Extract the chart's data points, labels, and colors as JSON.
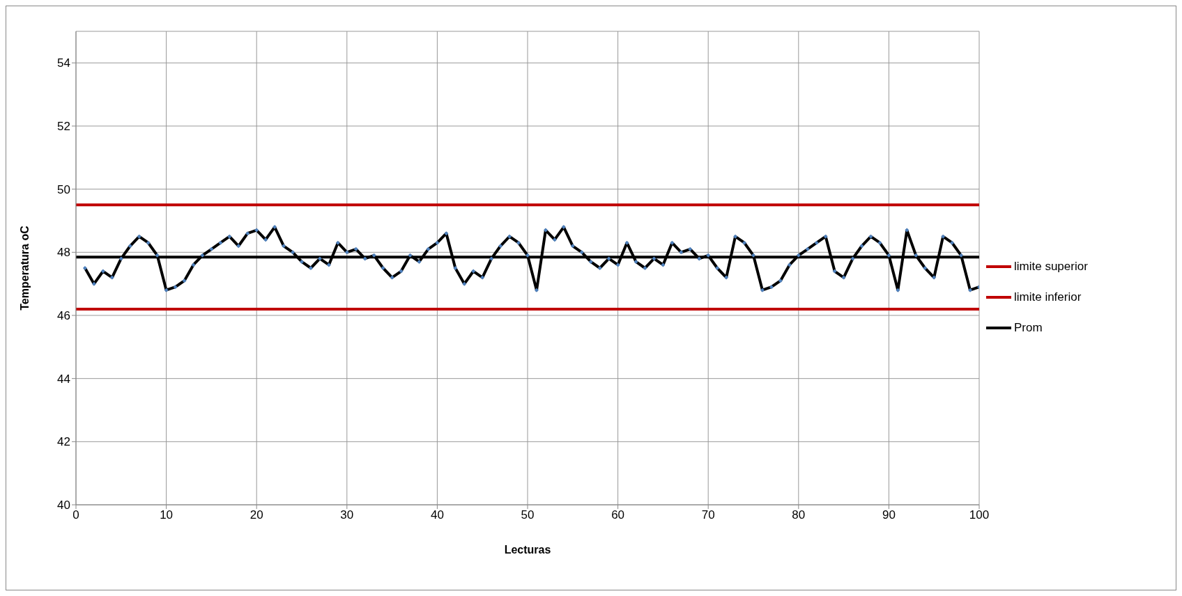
{
  "chart_data": {
    "type": "line",
    "xlabel": "Lecturas",
    "ylabel": "Temperatura oC",
    "x": [
      1,
      2,
      3,
      4,
      5,
      6,
      7,
      8,
      9,
      10,
      11,
      12,
      13,
      14,
      15,
      16,
      17,
      18,
      19,
      20,
      21,
      22,
      23,
      24,
      25,
      26,
      27,
      28,
      29,
      30,
      31,
      32,
      33,
      34,
      35,
      36,
      37,
      38,
      39,
      40,
      41,
      42,
      43,
      44,
      45,
      46,
      47,
      48,
      49,
      50,
      51,
      52,
      53,
      54,
      55,
      56,
      57,
      58,
      59,
      60,
      61,
      62,
      63,
      64,
      65,
      66,
      67,
      68,
      69,
      70,
      71,
      72,
      73,
      74,
      75,
      76,
      77,
      78,
      79,
      80,
      81,
      82,
      83,
      84,
      85,
      86,
      87,
      88,
      89,
      90,
      91,
      92,
      93,
      94,
      95,
      96,
      97,
      98,
      99,
      100
    ],
    "series": [
      {
        "color": "#000000",
        "marker": "diamond",
        "values": [
          47.5,
          47.0,
          47.4,
          47.2,
          47.8,
          48.2,
          48.5,
          48.3,
          47.9,
          46.8,
          46.9,
          47.1,
          47.6,
          47.9,
          48.1,
          48.3,
          48.5,
          48.2,
          48.6,
          48.7,
          48.4,
          48.8,
          48.2,
          48.0,
          47.7,
          47.5,
          47.8,
          47.6,
          48.3,
          48.0,
          48.1,
          47.8,
          47.9,
          47.5,
          47.2,
          47.4,
          47.9,
          47.7,
          48.1,
          48.3,
          48.6,
          47.5,
          47.0,
          47.4,
          47.2,
          47.8,
          48.2,
          48.5,
          48.3,
          47.9,
          46.8,
          48.7,
          48.4,
          48.8,
          48.2,
          48.0,
          47.7,
          47.5,
          47.8,
          47.6,
          48.3,
          47.7,
          47.5,
          47.8,
          47.6,
          48.3,
          48.0,
          48.1,
          47.8,
          47.9,
          47.5,
          47.2,
          48.5,
          48.3,
          47.9,
          46.8,
          46.9,
          47.1,
          47.6,
          47.9,
          48.1,
          48.3,
          48.5,
          47.4,
          47.2,
          47.8,
          48.2,
          48.5,
          48.3,
          47.9,
          46.8,
          48.7,
          47.9,
          47.5,
          47.2,
          48.5,
          48.3,
          47.9,
          46.8,
          46.9
        ]
      }
    ],
    "ref_lines": [
      {
        "axis": "y",
        "value": 49.5,
        "label": "limite superior",
        "color": "#c00000"
      },
      {
        "axis": "y",
        "value": 46.2,
        "label": "limite inferior",
        "color": "#c00000"
      },
      {
        "axis": "y",
        "value": 47.85,
        "label": "Prom",
        "color": "#000000"
      }
    ],
    "xlim": [
      0,
      100
    ],
    "xticks": [
      0,
      10,
      20,
      30,
      40,
      50,
      60,
      70,
      80,
      90,
      100
    ],
    "ylim": [
      40,
      55
    ],
    "yticks": [
      40,
      42,
      44,
      46,
      48,
      50,
      52,
      54
    ],
    "grid": true,
    "legend": "right",
    "line_style": "solid"
  }
}
